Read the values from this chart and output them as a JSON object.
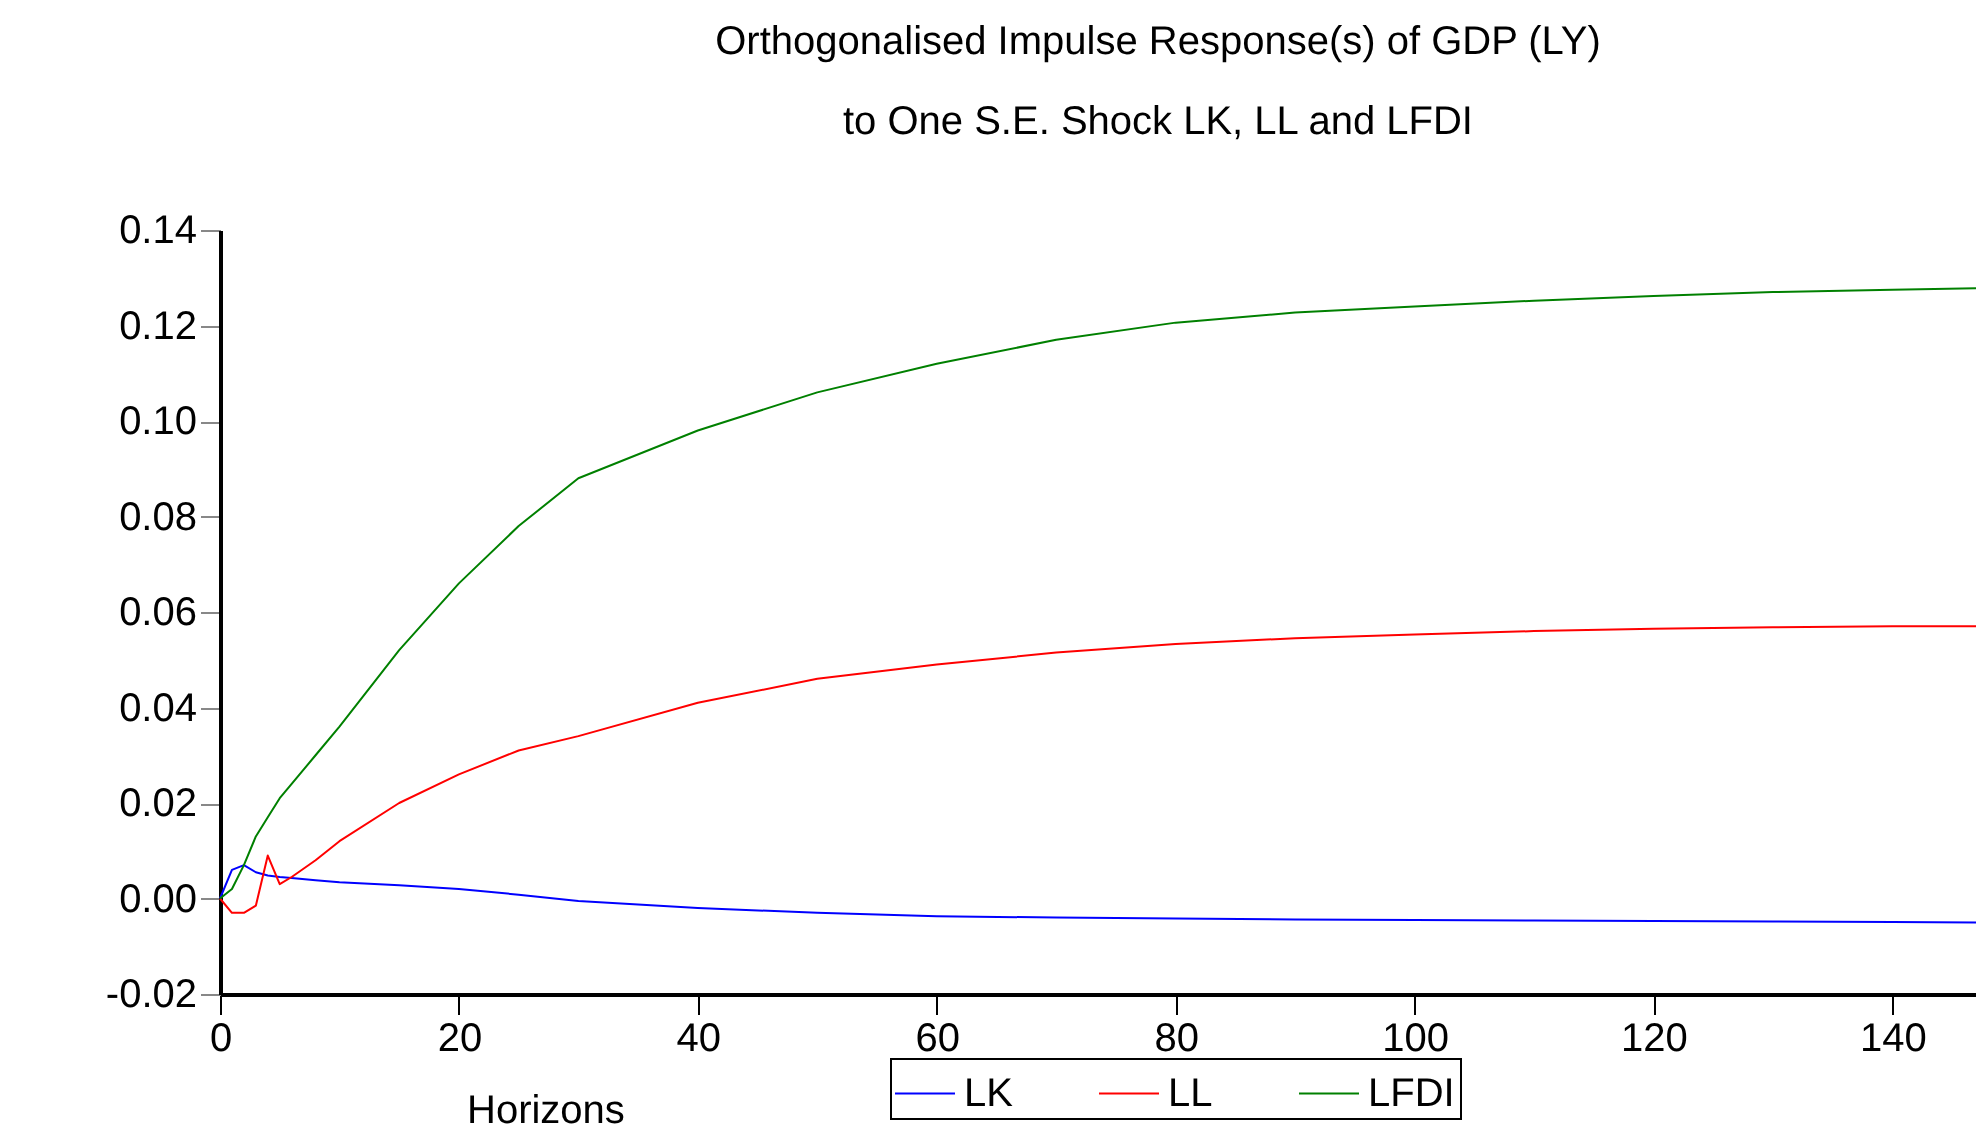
{
  "chart_data": {
    "type": "line",
    "title": "Orthogonalised Impulse Response(s) of GDP (LY)",
    "subtitle": "to One S.E. Shock LK, LL and LFDI",
    "xlabel": "Horizons",
    "x": [
      0,
      1,
      2,
      3,
      4,
      5,
      6,
      8,
      10,
      15,
      20,
      25,
      30,
      40,
      50,
      60,
      70,
      80,
      90,
      100,
      110,
      120,
      130,
      140,
      147
    ],
    "series": [
      {
        "name": "LK",
        "color": "#0000ff",
        "values": [
          0,
          0.006,
          0.007,
          0.0055,
          0.0048,
          0.0045,
          0.0043,
          0.0038,
          0.0034,
          0.0028,
          0.002,
          0.0008,
          -0.0005,
          -0.002,
          -0.003,
          -0.0037,
          -0.004,
          -0.0042,
          -0.0044,
          -0.0045,
          -0.0046,
          -0.0047,
          -0.0048,
          -0.0049,
          -0.005
        ]
      },
      {
        "name": "LL",
        "color": "#ff0000",
        "values": [
          0,
          -0.003,
          -0.003,
          -0.0015,
          0.009,
          0.003,
          0.0045,
          0.008,
          0.012,
          0.02,
          0.026,
          0.031,
          0.034,
          0.041,
          0.046,
          0.049,
          0.0515,
          0.0533,
          0.0545,
          0.0553,
          0.056,
          0.0565,
          0.0568,
          0.057,
          0.057
        ]
      },
      {
        "name": "LFDI",
        "color": "#008000",
        "values": [
          0,
          0.002,
          0.007,
          0.013,
          0.017,
          0.021,
          0.024,
          0.03,
          0.036,
          0.052,
          0.066,
          0.078,
          0.088,
          0.098,
          0.106,
          0.112,
          0.117,
          0.1206,
          0.1227,
          0.124,
          0.1252,
          0.1262,
          0.127,
          0.1275,
          0.1278
        ]
      }
    ],
    "xlim": [
      0,
      147
    ],
    "xticks": [
      0,
      20,
      40,
      60,
      80,
      100,
      120,
      140
    ],
    "ylim": [
      -0.02,
      0.14
    ],
    "yticks": [
      {
        "value": -0.02,
        "label": "-0.02"
      },
      {
        "value": 0,
        "label": "0.00"
      },
      {
        "value": 0.02,
        "label": "0.02"
      },
      {
        "value": 0.04,
        "label": "0.04"
      },
      {
        "value": 0.06,
        "label": "0.06"
      },
      {
        "value": 0.08,
        "label": "0.08"
      },
      {
        "value": 0.1,
        "label": "0.10"
      },
      {
        "value": 0.12,
        "label": "0.12"
      },
      {
        "value": 0.14,
        "label": "0.14"
      }
    ],
    "grid": false,
    "legend": "bottom right",
    "marker": "none",
    "line_style": "solid"
  }
}
